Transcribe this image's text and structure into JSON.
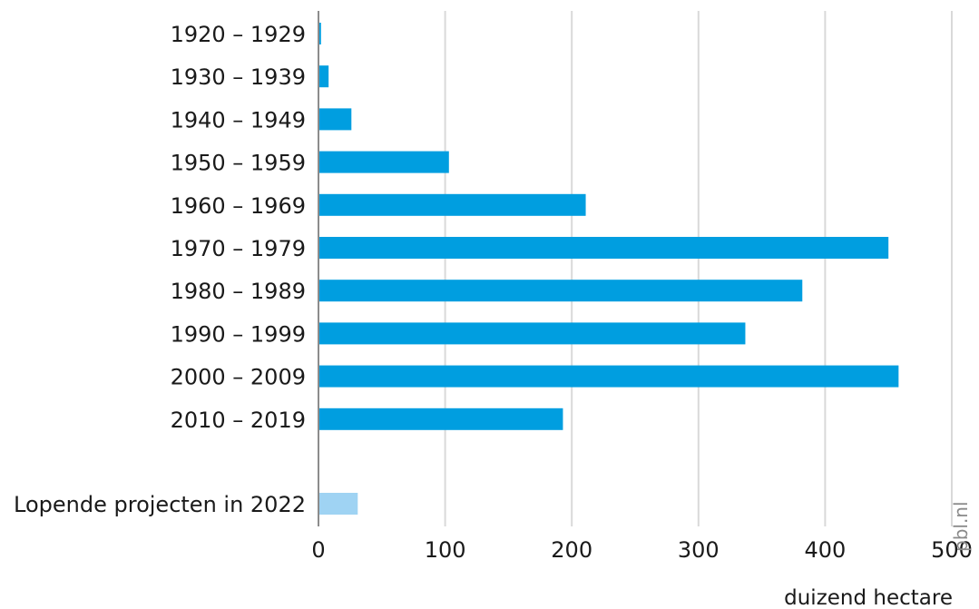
{
  "chart_data": {
    "type": "bar",
    "orientation": "horizontal",
    "categories": [
      "1920 – 1929",
      "1930 – 1939",
      "1940 – 1949",
      "1950 – 1959",
      "1960 – 1969",
      "1970 – 1979",
      "1980 – 1989",
      "1990 – 1999",
      "2000 – 2009",
      "2010 – 2019",
      "Lopende projecten in 2022"
    ],
    "values": [
      2,
      8,
      26,
      103,
      211,
      450,
      382,
      337,
      458,
      193,
      31
    ],
    "bar_colors": [
      "#009ee0",
      "#009ee0",
      "#009ee0",
      "#009ee0",
      "#009ee0",
      "#009ee0",
      "#009ee0",
      "#009ee0",
      "#009ee0",
      "#009ee0",
      "#9fd3f3"
    ],
    "title": "",
    "xlabel": "duizend hectare",
    "ylabel": "",
    "xlim": [
      0,
      500
    ],
    "xticks": [
      0,
      100,
      200,
      300,
      400,
      500
    ],
    "xtick_labels": [
      "0",
      "100",
      "200",
      "300",
      "400",
      "500"
    ],
    "grid": "vertical",
    "legend": "none",
    "source_label": "pbl.nl",
    "colors": {
      "bar": "#009ee0",
      "bar_highlight": "#9fd3f3",
      "grid": "#d9d9d9",
      "axis": "#8c8c8c",
      "text": "#1a1a1a",
      "source": "#8a8a8a"
    }
  }
}
